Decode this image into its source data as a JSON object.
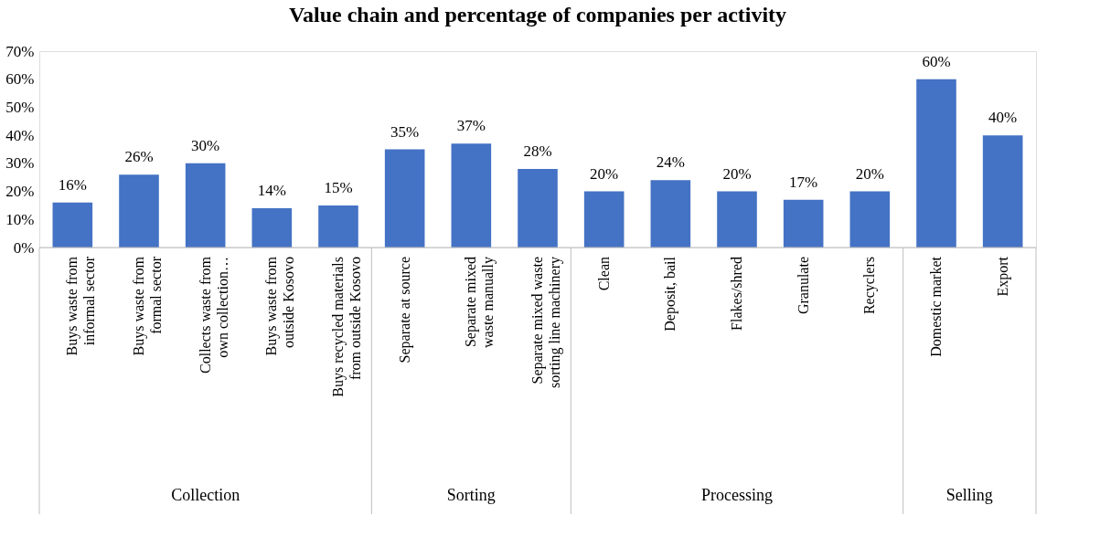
{
  "chart_data": {
    "type": "bar",
    "title": "Value chain and percentage of companies per activity",
    "categories": [
      "Buys waste from informal sector",
      "Buys waste from formal sector",
      "Collects waste from own collection…",
      "Buys waste from outside Kosovo",
      "Buys recycled materials from outside Kosovo",
      "Separate at source",
      "Separate mixed waste manually",
      "Separate mixed waste sorting line machinery",
      "Clean",
      "Deposit, bail",
      "Flakes/shred",
      "Granulate",
      "Recyclers",
      "Domestic market",
      "Export"
    ],
    "values": [
      16,
      26,
      30,
      14,
      15,
      35,
      37,
      28,
      20,
      24,
      20,
      17,
      20,
      60,
      40
    ],
    "value_labels": [
      "16%",
      "26%",
      "30%",
      "14%",
      "15%",
      "35%",
      "37%",
      "28%",
      "20%",
      "24%",
      "20%",
      "17%",
      "20%",
      "60%",
      "40%"
    ],
    "color": "#4472c4",
    "ylim": [
      0,
      70
    ],
    "yticks": [
      {
        "value": 0,
        "label": "0%"
      },
      {
        "value": 10,
        "label": "10%"
      },
      {
        "value": 20,
        "label": "20%"
      },
      {
        "value": 30,
        "label": "30%"
      },
      {
        "value": 40,
        "label": "40%"
      },
      {
        "value": 50,
        "label": "50%"
      },
      {
        "value": 60,
        "label": "60%"
      },
      {
        "value": 70,
        "label": "70%"
      }
    ],
    "annotations": [
      "Collection",
      "Sorting",
      "Processing",
      "Selling"
    ],
    "grid": false
  }
}
